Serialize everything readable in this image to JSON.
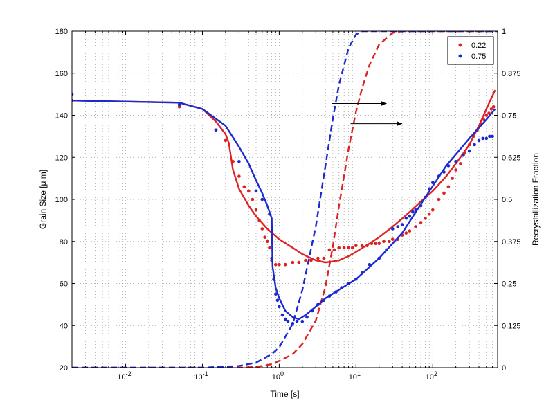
{
  "chart_data": {
    "type": "line",
    "xlabel": "Time [s]",
    "ylabel_left": "Grain Size [μ m]",
    "ylabel_right": "Recrystallization Fraction",
    "x_scale": "log",
    "xlim": [
      0.002,
      700
    ],
    "ylim_left": [
      20,
      180
    ],
    "ylim_right": [
      0,
      1
    ],
    "grid": true,
    "legend_position": "top-right",
    "x_ticks": [
      {
        "value": 0.01,
        "base": "10",
        "exp": "-2"
      },
      {
        "value": 0.1,
        "base": "10",
        "exp": "-1"
      },
      {
        "value": 1,
        "base": "10",
        "exp": "0"
      },
      {
        "value": 10,
        "base": "10",
        "exp": "1"
      },
      {
        "value": 100,
        "base": "10",
        "exp": "2"
      }
    ],
    "y_ticks_left": [
      "20",
      "40",
      "60",
      "80",
      "100",
      "120",
      "140",
      "160",
      "180"
    ],
    "y_ticks_right": [
      {
        "value": 0,
        "label": "0"
      },
      {
        "value": 0.125,
        "label": "0.125"
      },
      {
        "value": 0.25,
        "label": "0.25"
      },
      {
        "value": 0.375,
        "label": "0.375"
      },
      {
        "value": 0.5,
        "label": "0.5"
      },
      {
        "value": 0.625,
        "label": "0.625"
      },
      {
        "value": 0.75,
        "label": "0.75"
      },
      {
        "value": 0.875,
        "label": "0.875"
      },
      {
        "value": 1,
        "label": "1"
      }
    ],
    "series": [
      {
        "name": "0.22",
        "color": "#dd2222",
        "measured_grain_size": [
          [
            0.002,
            147
          ],
          [
            0.05,
            144
          ],
          [
            0.15,
            133
          ],
          [
            0.2,
            128
          ],
          [
            0.25,
            118
          ],
          [
            0.3,
            111
          ],
          [
            0.35,
            106
          ],
          [
            0.4,
            104
          ],
          [
            0.45,
            100
          ],
          [
            0.5,
            95
          ],
          [
            0.55,
            90
          ],
          [
            0.6,
            86
          ],
          [
            0.65,
            82
          ],
          [
            0.7,
            80
          ],
          [
            0.75,
            77
          ],
          [
            0.8,
            71
          ],
          [
            0.9,
            69
          ],
          [
            1.0,
            69
          ],
          [
            1.2,
            69
          ],
          [
            1.5,
            70
          ],
          [
            1.8,
            70
          ],
          [
            2.2,
            71
          ],
          [
            2.6,
            71
          ],
          [
            3.2,
            72
          ],
          [
            3.8,
            72
          ],
          [
            4.5,
            76
          ],
          [
            5.2,
            76
          ],
          [
            6,
            77
          ],
          [
            7,
            77
          ],
          [
            8,
            77
          ],
          [
            9,
            77
          ],
          [
            10,
            78
          ],
          [
            12,
            78
          ],
          [
            14,
            78
          ],
          [
            16,
            79
          ],
          [
            18,
            79
          ],
          [
            20,
            79
          ],
          [
            23,
            80
          ],
          [
            27,
            80
          ],
          [
            30,
            81
          ],
          [
            35,
            81
          ],
          [
            40,
            83
          ],
          [
            45,
            84
          ],
          [
            50,
            85
          ],
          [
            60,
            87
          ],
          [
            70,
            89
          ],
          [
            80,
            91
          ],
          [
            90,
            93
          ],
          [
            100,
            95
          ],
          [
            120,
            100
          ],
          [
            140,
            103
          ],
          [
            160,
            106
          ],
          [
            180,
            110
          ],
          [
            200,
            114
          ],
          [
            230,
            117
          ],
          [
            260,
            122
          ],
          [
            300,
            126
          ],
          [
            340,
            130
          ],
          [
            380,
            133
          ],
          [
            420,
            136
          ],
          [
            460,
            138
          ],
          [
            500,
            140
          ],
          [
            540,
            141
          ],
          [
            580,
            143
          ],
          [
            620,
            144
          ]
        ],
        "model_grain_size": [
          [
            0.002,
            147
          ],
          [
            0.05,
            146
          ],
          [
            0.1,
            143
          ],
          [
            0.15,
            137
          ],
          [
            0.2,
            131
          ],
          [
            0.22,
            127
          ],
          [
            0.25,
            114
          ],
          [
            0.3,
            105
          ],
          [
            0.4,
            97
          ],
          [
            0.5,
            92
          ],
          [
            0.7,
            86
          ],
          [
            1,
            81
          ],
          [
            1.5,
            77
          ],
          [
            2,
            74
          ],
          [
            3,
            71
          ],
          [
            4,
            70
          ],
          [
            5,
            70.5
          ],
          [
            6,
            71
          ],
          [
            8,
            73
          ],
          [
            10,
            75
          ],
          [
            15,
            79
          ],
          [
            20,
            82
          ],
          [
            30,
            87
          ],
          [
            50,
            94
          ],
          [
            70,
            99
          ],
          [
            100,
            104
          ],
          [
            150,
            111
          ],
          [
            200,
            117
          ],
          [
            300,
            126
          ],
          [
            400,
            135
          ],
          [
            500,
            143
          ],
          [
            650,
            152
          ]
        ],
        "recrystallization_fraction": [
          [
            0.002,
            0
          ],
          [
            0.3,
            0
          ],
          [
            0.5,
            0.002
          ],
          [
            0.8,
            0.01
          ],
          [
            1,
            0.02
          ],
          [
            1.5,
            0.04
          ],
          [
            2,
            0.07
          ],
          [
            3,
            0.14
          ],
          [
            4,
            0.24
          ],
          [
            5,
            0.36
          ],
          [
            6,
            0.48
          ],
          [
            7,
            0.57
          ],
          [
            8,
            0.65
          ],
          [
            10,
            0.76
          ],
          [
            12,
            0.83
          ],
          [
            15,
            0.9
          ],
          [
            20,
            0.96
          ],
          [
            30,
            0.995
          ],
          [
            40,
            1
          ],
          [
            700,
            1
          ]
        ]
      },
      {
        "name": "0.75",
        "color": "#1a2ad0",
        "measured_grain_size": [
          [
            0.002,
            150
          ],
          [
            0.05,
            145
          ],
          [
            0.15,
            133
          ],
          [
            0.3,
            118
          ],
          [
            0.5,
            104
          ],
          [
            0.6,
            100
          ],
          [
            0.75,
            93
          ],
          [
            0.8,
            72
          ],
          [
            0.85,
            62
          ],
          [
            0.9,
            55
          ],
          [
            0.95,
            52
          ],
          [
            1.0,
            49
          ],
          [
            1.1,
            45
          ],
          [
            1.2,
            43
          ],
          [
            1.3,
            42
          ],
          [
            1.5,
            41
          ],
          [
            1.7,
            42
          ],
          [
            2.0,
            42
          ],
          [
            2.3,
            44
          ],
          [
            2.7,
            47
          ],
          [
            3.2,
            50
          ],
          [
            3.8,
            52
          ],
          [
            4.5,
            54
          ],
          [
            5.5,
            56
          ],
          [
            6.5,
            58
          ],
          [
            8,
            60
          ],
          [
            10,
            62
          ],
          [
            12,
            65
          ],
          [
            15,
            69
          ],
          [
            20,
            72
          ],
          [
            25,
            76
          ],
          [
            30,
            86
          ],
          [
            35,
            87
          ],
          [
            40,
            88
          ],
          [
            45,
            91
          ],
          [
            50,
            92
          ],
          [
            55,
            94
          ],
          [
            60,
            95
          ],
          [
            70,
            97
          ],
          [
            80,
            101
          ],
          [
            90,
            105
          ],
          [
            100,
            108
          ],
          [
            120,
            111
          ],
          [
            140,
            113
          ],
          [
            160,
            116
          ],
          [
            200,
            118
          ],
          [
            250,
            121
          ],
          [
            300,
            123
          ],
          [
            350,
            126
          ],
          [
            400,
            128
          ],
          [
            450,
            129
          ],
          [
            500,
            129
          ],
          [
            550,
            130
          ],
          [
            600,
            130
          ]
        ],
        "model_grain_size": [
          [
            0.002,
            147
          ],
          [
            0.05,
            146
          ],
          [
            0.1,
            143
          ],
          [
            0.2,
            135
          ],
          [
            0.3,
            125
          ],
          [
            0.4,
            117
          ],
          [
            0.5,
            109
          ],
          [
            0.6,
            103
          ],
          [
            0.7,
            97
          ],
          [
            0.8,
            91
          ],
          [
            0.82,
            68
          ],
          [
            0.9,
            58
          ],
          [
            1,
            53
          ],
          [
            1.2,
            47
          ],
          [
            1.5,
            44
          ],
          [
            1.8,
            43
          ],
          [
            2.2,
            45
          ],
          [
            3,
            49
          ],
          [
            4,
            53
          ],
          [
            6,
            57
          ],
          [
            10,
            62
          ],
          [
            20,
            72
          ],
          [
            40,
            84
          ],
          [
            80,
            101
          ],
          [
            150,
            116
          ],
          [
            300,
            129
          ],
          [
            500,
            138
          ],
          [
            650,
            143
          ]
        ],
        "recrystallization_fraction": [
          [
            0.002,
            0
          ],
          [
            0.1,
            0
          ],
          [
            0.3,
            0.005
          ],
          [
            0.5,
            0.015
          ],
          [
            0.8,
            0.04
          ],
          [
            1,
            0.06
          ],
          [
            1.5,
            0.13
          ],
          [
            2,
            0.23
          ],
          [
            3,
            0.42
          ],
          [
            4,
            0.6
          ],
          [
            5,
            0.74
          ],
          [
            6,
            0.84
          ],
          [
            8,
            0.95
          ],
          [
            10,
            0.99
          ],
          [
            12,
            1
          ],
          [
            700,
            1
          ]
        ]
      }
    ]
  }
}
